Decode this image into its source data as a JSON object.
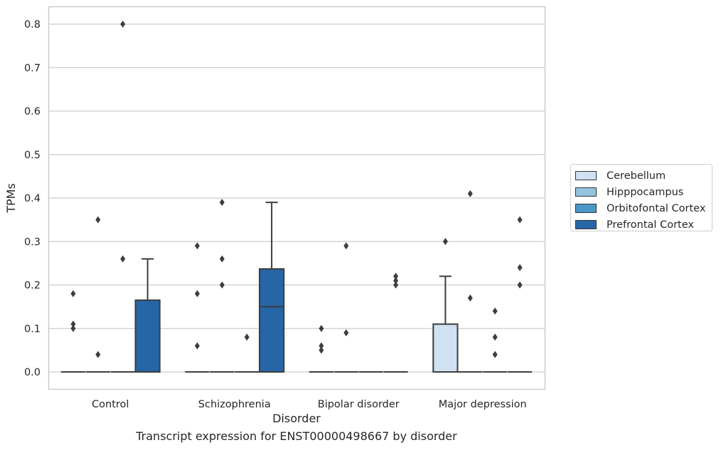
{
  "chart_data": {
    "type": "boxplot",
    "title": "Transcript expression for ENST00000498667 by disorder",
    "xlabel": "Disorder",
    "ylabel": "TPMs",
    "ylim": [
      -0.04,
      0.84
    ],
    "yticks": [
      0.0,
      0.1,
      0.2,
      0.3,
      0.4,
      0.5,
      0.6,
      0.7,
      0.8
    ],
    "ytick_labels": [
      "0.0",
      "0.1",
      "0.2",
      "0.3",
      "0.4",
      "0.5",
      "0.6",
      "0.7",
      "0.8"
    ],
    "categories": [
      "Control",
      "Schizophrenia",
      "Bipolar disorder",
      "Major depression"
    ],
    "grid": true,
    "legend_position": "right",
    "series": [
      {
        "name": "Cerebellum",
        "color": "#d0e1f2",
        "boxes": [
          {
            "q1": 0,
            "median": 0,
            "q3": 0,
            "whisker_low": 0,
            "whisker_high": 0,
            "outliers": [
              0.18,
              0.11,
              0.1
            ]
          },
          {
            "q1": 0,
            "median": 0,
            "q3": 0,
            "whisker_low": 0,
            "whisker_high": 0,
            "outliers": [
              0.29,
              0.18,
              0.06
            ]
          },
          {
            "q1": 0,
            "median": 0,
            "q3": 0,
            "whisker_low": 0,
            "whisker_high": 0,
            "outliers": [
              0.1,
              0.06,
              0.05
            ]
          },
          {
            "q1": 0,
            "median": 0,
            "q3": 0.11,
            "whisker_low": 0,
            "whisker_high": 0.22,
            "outliers": [
              0.3
            ]
          }
        ]
      },
      {
        "name": "Hipppocampus",
        "color": "#94c4df",
        "boxes": [
          {
            "q1": 0,
            "median": 0,
            "q3": 0,
            "whisker_low": 0,
            "whisker_high": 0,
            "outliers": [
              0.35,
              0.04
            ]
          },
          {
            "q1": 0,
            "median": 0,
            "q3": 0,
            "whisker_low": 0,
            "whisker_high": 0,
            "outliers": [
              0.39,
              0.26,
              0.2
            ]
          },
          {
            "q1": 0,
            "median": 0,
            "q3": 0,
            "whisker_low": 0,
            "whisker_high": 0,
            "outliers": [
              0.29,
              0.09
            ]
          },
          {
            "q1": 0,
            "median": 0,
            "q3": 0,
            "whisker_low": 0,
            "whisker_high": 0,
            "outliers": [
              0.41,
              0.17
            ]
          }
        ]
      },
      {
        "name": "Orbitofontal Cortex",
        "color": "#4a98c9",
        "boxes": [
          {
            "q1": 0,
            "median": 0,
            "q3": 0,
            "whisker_low": 0,
            "whisker_high": 0,
            "outliers": [
              0.8,
              0.26
            ]
          },
          {
            "q1": 0,
            "median": 0,
            "q3": 0,
            "whisker_low": 0,
            "whisker_high": 0,
            "outliers": [
              0.08
            ]
          },
          {
            "q1": 0,
            "median": 0,
            "q3": 0,
            "whisker_low": 0,
            "whisker_high": 0,
            "outliers": []
          },
          {
            "q1": 0,
            "median": 0,
            "q3": 0,
            "whisker_low": 0,
            "whisker_high": 0,
            "outliers": [
              0.14,
              0.08,
              0.04
            ]
          }
        ]
      },
      {
        "name": "Prefrontal Cortex",
        "color": "#2666a7",
        "boxes": [
          {
            "q1": 0,
            "median": 0,
            "q3": 0.165,
            "whisker_low": 0,
            "whisker_high": 0.26,
            "outliers": []
          },
          {
            "q1": 0,
            "median": 0.15,
            "q3": 0.237,
            "whisker_low": 0,
            "whisker_high": 0.39,
            "outliers": []
          },
          {
            "q1": 0,
            "median": 0,
            "q3": 0,
            "whisker_low": 0,
            "whisker_high": 0,
            "outliers": [
              0.22,
              0.21,
              0.2
            ]
          },
          {
            "q1": 0,
            "median": 0,
            "q3": 0,
            "whisker_low": 0,
            "whisker_high": 0,
            "outliers": [
              0.35,
              0.24,
              0.2
            ]
          }
        ]
      }
    ]
  }
}
